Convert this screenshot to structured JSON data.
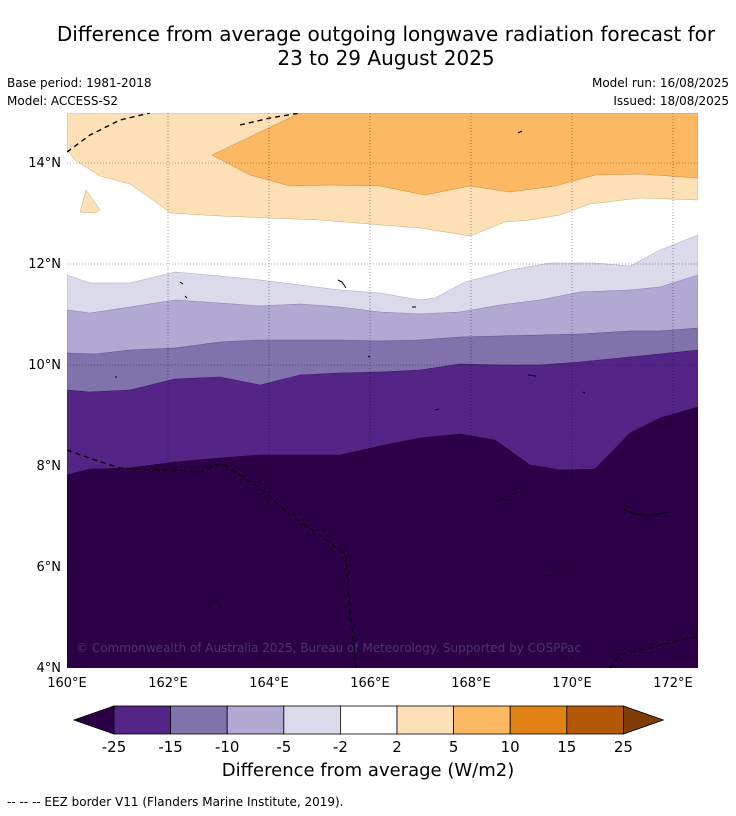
{
  "title_line1": "Difference from average outgoing longwave radiation forecast for",
  "title_line2": "23 to 29 August 2025",
  "base_period": "Base period: 1981-2018",
  "model": "Model: ACCESS-S2",
  "model_run": "Model run: 16/08/2025",
  "issued": "Issued: 18/08/2025",
  "copyright": "© Commonwealth of Australia 2025, Bureau of Meteorology. Supported by COSPPac",
  "map": {
    "x_ticks": [
      "160°E",
      "162°E",
      "164°E",
      "166°E",
      "168°E",
      "170°E",
      "172°E"
    ],
    "y_ticks": [
      "4°N",
      "6°N",
      "8°N",
      "10°N",
      "12°N",
      "14°N"
    ]
  },
  "colorbar": {
    "title": "Difference from average (W/m2)",
    "labels": [
      "-25",
      "-15",
      "-10",
      "-5",
      "-2",
      "2",
      "5",
      "10",
      "15",
      "25"
    ],
    "colors": [
      "#2c0047",
      "#542487",
      "#8072ab",
      "#b1a9d2",
      "#dadaea",
      "#ffffff",
      "#fee0b6",
      "#fdb863",
      "#e08214",
      "#b35806",
      "#7f3b08"
    ]
  },
  "footnote": "--  --  -- EEZ border V11 (Flanders Marine Institute, 2019)."
}
